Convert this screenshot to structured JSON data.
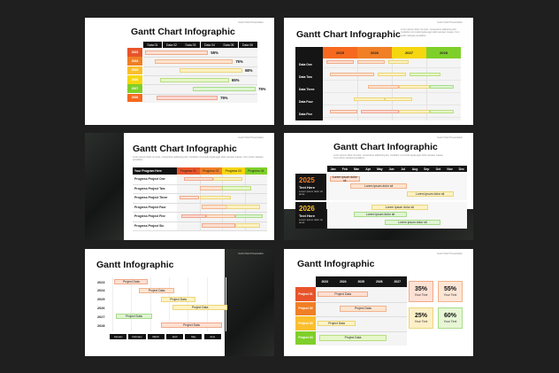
{
  "colors": {
    "c2023": "#e8542a",
    "c2024": "#f07f25",
    "c2025": "#fbbf2e",
    "c2026": "#f5d60f",
    "c2027": "#7fcf2a",
    "c2028": "#f6691f"
  },
  "header_tag": "Gantt Chart Presentation",
  "slide1": {
    "title": "Gantt Chart Infographic",
    "columns": [
      "Data 01",
      "Data 02",
      "Data 03",
      "Data 04",
      "Data 05",
      "Data 06"
    ],
    "rows": [
      {
        "year": "2023",
        "pct": "55%"
      },
      {
        "year": "2024",
        "pct": "75%"
      },
      {
        "year": "2025",
        "pct": "68%"
      },
      {
        "year": "2026",
        "pct": "65%"
      },
      {
        "year": "2027",
        "pct": "75%"
      },
      {
        "year": "2028",
        "pct": "75%"
      }
    ]
  },
  "slide2": {
    "title": "Gantt Chart Infographic",
    "desc": "Lorem ipsum dolor sit amet, consectetur adipiscing elit. Curabitur commodo ligula eget dolor aenean massa. Cum sociis natoque penatibus.",
    "years": [
      "2025",
      "2026",
      "2027",
      "2028"
    ],
    "rows": [
      "Data One",
      "Data Two",
      "Data Three",
      "Data Four",
      "Data Five"
    ]
  },
  "slide3": {
    "title": "Gantt Chart Infographic",
    "desc": "Lorem ipsum dolor sit amet, consectetur adipiscing elit. Curabitur commodo ligula eget dolor aenean massa. Cum sociis natoque penatibus.",
    "head_label": "Your Program Here",
    "progress": [
      "Progress 01",
      "Progress 02",
      "Progress 03",
      "Progress 04"
    ],
    "rows": [
      "Progress Project One",
      "Progress Project Two",
      "Progress Project Three",
      "Progress Project Four",
      "Progress Project Five",
      "Progress Project Six"
    ]
  },
  "slide4": {
    "title": "Gantt Chart Infographic",
    "desc": "Lorem ipsum dolor sit amet, consectetur adipiscing elit. Curabitur commodo ligula eget dolor aenean massa. Cum sociis natoque penatibus.",
    "months": [
      "Jan",
      "Feb",
      "Mar",
      "Apr",
      "May",
      "Jun",
      "Jul",
      "Aug",
      "Sep",
      "Oct",
      "Nov",
      "Dec"
    ],
    "blocks": [
      {
        "year": "2025",
        "label": "Text Here",
        "desc": "Lorem ipsum dolor sit amet."
      },
      {
        "year": "2026",
        "label": "Text Here",
        "desc": "Lorem ipsum dolor sit amet."
      }
    ],
    "bar_text": "Lorem ipsum dolor sit"
  },
  "slide5": {
    "title": "Gantt Infographic",
    "years": [
      "2023",
      "2024",
      "2025",
      "2026",
      "2027",
      "2028"
    ],
    "bar_text": "Project Data",
    "months": [
      "January",
      "February",
      "March",
      "April",
      "May",
      "June"
    ]
  },
  "slide6": {
    "title": "Gantt Infographic",
    "years": [
      "2023",
      "2024",
      "2025",
      "2026",
      "2027"
    ],
    "rows": [
      "Project 01",
      "Project 02",
      "Project 03",
      "Project 04"
    ],
    "bar_text": "Project Data",
    "cards": [
      {
        "value": "35%",
        "label": "Your Text"
      },
      {
        "value": "55%",
        "label": "Your Text"
      },
      {
        "value": "25%",
        "label": "Your Text"
      },
      {
        "value": "60%",
        "label": "Your Text"
      }
    ]
  }
}
